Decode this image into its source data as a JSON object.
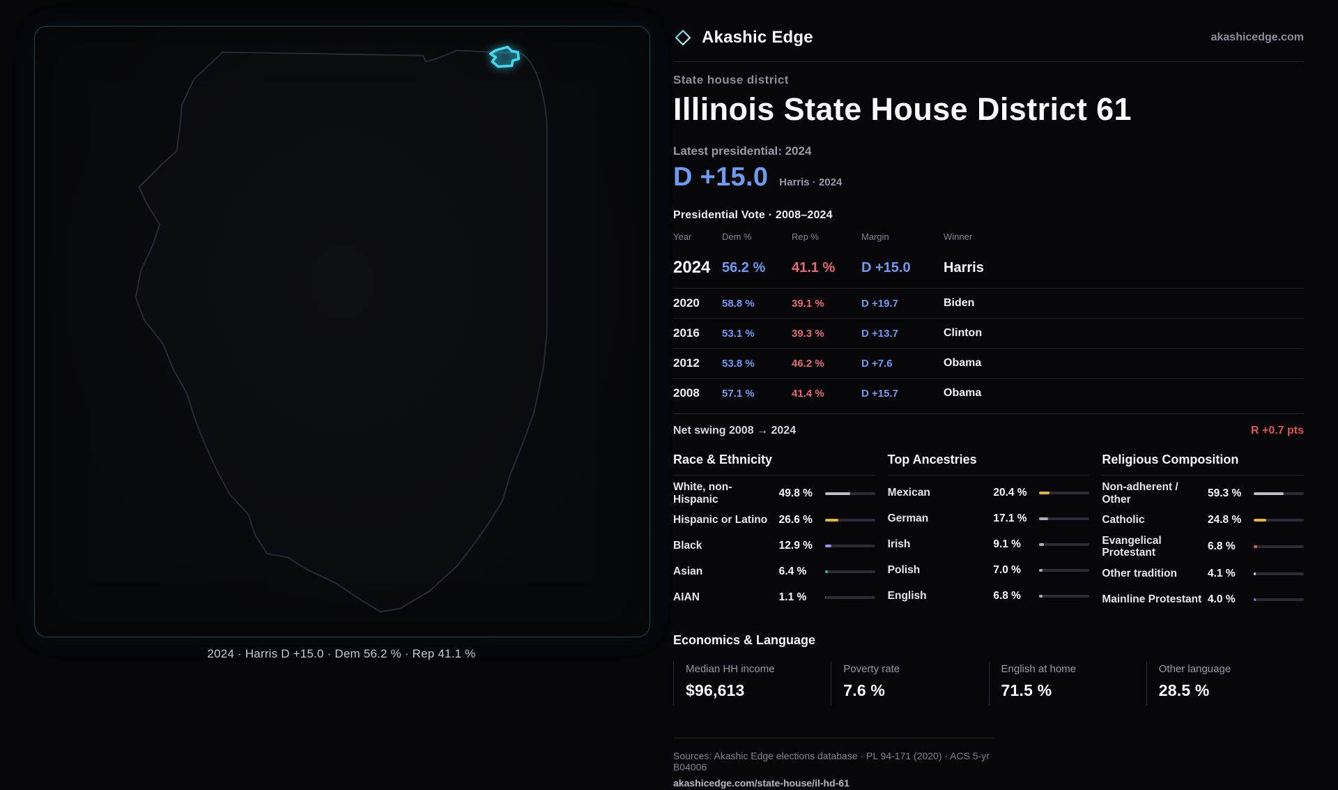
{
  "theme": {
    "background": "#060608",
    "dem_blue": "#6b9bf3",
    "rep_red": "#e76873",
    "district_cyan": "#3fd9f2",
    "swing_red": "#e0544d",
    "accent_amber": "#e6b23e"
  },
  "brand": {
    "name": "Akashic Edge",
    "domain": "akashicedge.com"
  },
  "header": {
    "kicker": "State house district",
    "title": "Illinois State House District 61"
  },
  "latest": {
    "label": "Latest presidential: 2024",
    "value": "D +15.0",
    "detail": "Harris · 2024"
  },
  "vote_table": {
    "title": "Presidential Vote · 2008–2024",
    "columns": [
      "Year",
      "Dem %",
      "Rep %",
      "Margin",
      "Winner"
    ],
    "rows": [
      {
        "year": "2024",
        "dem": "56.2 %",
        "rep": "41.1 %",
        "margin": "D +15.0",
        "winner": "Harris"
      },
      {
        "year": "2020",
        "dem": "58.8 %",
        "rep": "39.1 %",
        "margin": "D +19.7",
        "winner": "Biden"
      },
      {
        "year": "2016",
        "dem": "53.1 %",
        "rep": "39.3 %",
        "margin": "D +13.7",
        "winner": "Clinton"
      },
      {
        "year": "2012",
        "dem": "53.8 %",
        "rep": "46.2 %",
        "margin": "D +7.6",
        "winner": "Obama"
      },
      {
        "year": "2008",
        "dem": "57.1 %",
        "rep": "41.4 %",
        "margin": "D +15.7",
        "winner": "Obama"
      }
    ]
  },
  "net_swing": {
    "label": "Net swing 2008 → 2024",
    "value": "R +0.7 pts"
  },
  "demographics": {
    "groups": [
      {
        "title": "Race & Ethnicity",
        "rows": [
          {
            "label": "White, non-Hispanic",
            "value": "49.8 %",
            "pct": 49.8,
            "color": "#b9bec7"
          },
          {
            "label": "Hispanic or Latino",
            "value": "26.6 %",
            "pct": 26.6,
            "color": "#e6b23e"
          },
          {
            "label": "Black",
            "value": "12.9 %",
            "pct": 12.9,
            "color": "#9f8bf5"
          },
          {
            "label": "Asian",
            "value": "6.4 %",
            "pct": 6.4,
            "color": "#37c08b"
          },
          {
            "label": "AIAN",
            "value": "1.1 %",
            "pct": 1.1,
            "color": "#c2553a"
          }
        ]
      },
      {
        "title": "Top Ancestries",
        "rows": [
          {
            "label": "Mexican",
            "value": "20.4 %",
            "pct": 20.4,
            "color": "#e6b23e"
          },
          {
            "label": "German",
            "value": "17.1 %",
            "pct": 17.1,
            "color": "#aab0b9"
          },
          {
            "label": "Irish",
            "value": "9.1 %",
            "pct": 9.1,
            "color": "#aab0b9"
          },
          {
            "label": "Polish",
            "value": "7.0 %",
            "pct": 7.0,
            "color": "#aab0b9"
          },
          {
            "label": "English",
            "value": "6.8 %",
            "pct": 6.8,
            "color": "#aab0b9"
          }
        ]
      },
      {
        "title": "Religious Composition",
        "rows": [
          {
            "label": "Non-adherent / Other",
            "value": "59.3 %",
            "pct": 59.3,
            "color": "#b9bec7"
          },
          {
            "label": "Catholic",
            "value": "24.8 %",
            "pct": 24.8,
            "color": "#e6b23e"
          },
          {
            "label": "Evangelical Protestant",
            "value": "6.8 %",
            "pct": 6.8,
            "color": "#e0606e"
          },
          {
            "label": "Other tradition",
            "value": "4.1 %",
            "pct": 4.1,
            "color": "#cfd3d9"
          },
          {
            "label": "Mainline Protestant",
            "value": "4.0 %",
            "pct": 4.0,
            "color": "#5b86ee"
          }
        ]
      }
    ]
  },
  "economics": {
    "title": "Economics & Language",
    "stats": [
      {
        "label": "Median HH income",
        "value": "$96,613"
      },
      {
        "label": "Poverty rate",
        "value": "7.6 %"
      },
      {
        "label": "English at home",
        "value": "71.5 %"
      },
      {
        "label": "Other language",
        "value": "28.5 %"
      }
    ]
  },
  "map": {
    "caption": "2024 · Harris D +15.0 · Dem 56.2 % · Rep 41.1 %"
  },
  "footer": {
    "sources": "Sources: Akashic Edge elections database · PL 94-171 (2020) · ACS 5-yr B04006",
    "link": "akashicedge.com/state-house/il-hd-61"
  }
}
